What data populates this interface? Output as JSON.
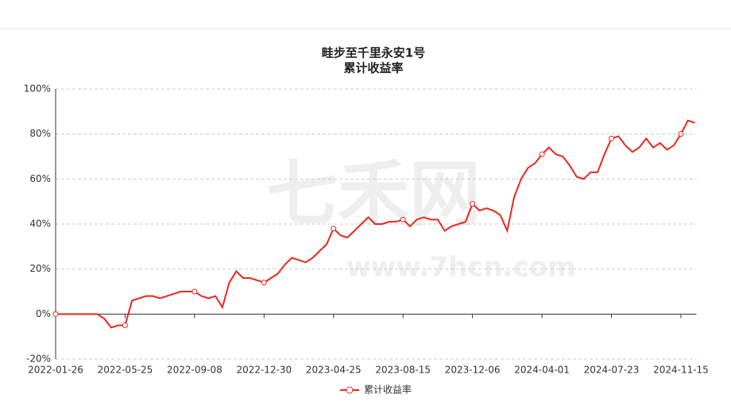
{
  "chart_data": {
    "type": "line",
    "title": "畦步至千里永安1号",
    "subtitle": "累计收益率",
    "watermark": {
      "brand": "七禾网",
      "url": "www.7hcn.com"
    },
    "categories": [
      "2022-01-26",
      null,
      null,
      null,
      null,
      null,
      null,
      null,
      null,
      null,
      "2022-05-25",
      null,
      null,
      null,
      null,
      null,
      null,
      null,
      null,
      null,
      "2022-09-08",
      null,
      null,
      null,
      null,
      null,
      null,
      null,
      null,
      null,
      "2022-12-30",
      null,
      null,
      null,
      null,
      null,
      null,
      null,
      null,
      null,
      "2023-04-25",
      null,
      null,
      null,
      null,
      null,
      null,
      null,
      null,
      null,
      "2023-08-15",
      null,
      null,
      null,
      null,
      null,
      null,
      null,
      null,
      null,
      "2023-12-06",
      null,
      null,
      null,
      null,
      null,
      null,
      null,
      null,
      null,
      "2024-04-01",
      null,
      null,
      null,
      null,
      null,
      null,
      null,
      null,
      null,
      "2024-07-23",
      null,
      null,
      null,
      null,
      null,
      null,
      null,
      null,
      null,
      "2024-11-15",
      null,
      null
    ],
    "series": [
      {
        "name": "累计收益率",
        "color": "#e8281e",
        "values": [
          0,
          0,
          0,
          0,
          0,
          0,
          0,
          -2,
          -6,
          -5,
          -5,
          6,
          7,
          8,
          8,
          7,
          8,
          9,
          10,
          10,
          10,
          8,
          7,
          8,
          3,
          14,
          19,
          16,
          16,
          15,
          14,
          16,
          18,
          22,
          25,
          24,
          23,
          25,
          28,
          31,
          38,
          35,
          34,
          37,
          40,
          43,
          40,
          40,
          41,
          41,
          42,
          39,
          42,
          43,
          42,
          42,
          37,
          39,
          40,
          41,
          49,
          46,
          47,
          46,
          44,
          37,
          52,
          60,
          65,
          67,
          71,
          74,
          71,
          70,
          66,
          61,
          60,
          63,
          63,
          71,
          78,
          79,
          75,
          72,
          74,
          78,
          74,
          76,
          73,
          75,
          80,
          86,
          85
        ]
      }
    ],
    "ylim": [
      -20,
      100
    ],
    "yticks": [
      {
        "value": -20,
        "label": "-20%"
      },
      {
        "value": 0,
        "label": "0%"
      },
      {
        "value": 20,
        "label": "20%"
      },
      {
        "value": 40,
        "label": "40%"
      },
      {
        "value": 60,
        "label": "60%"
      },
      {
        "value": 80,
        "label": "80%"
      },
      {
        "value": 100,
        "label": "100%"
      }
    ],
    "grid": true,
    "legend": "bottom"
  }
}
